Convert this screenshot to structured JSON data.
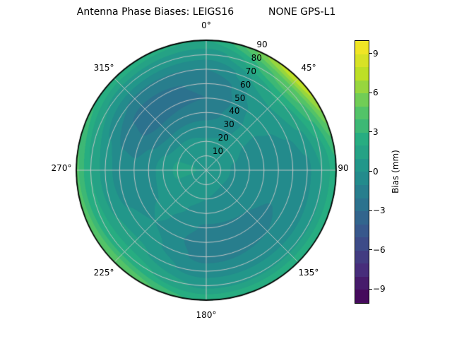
{
  "chart_data": {
    "type": "heatmap",
    "subtype": "filled-polar-contour",
    "title": "Antenna Phase Biases: LEIGS16           NONE GPS-L1",
    "colormap": "viridis",
    "levels": {
      "min": -10,
      "max": 10,
      "step": 1
    },
    "radial_range": [
      0,
      90
    ],
    "radial_label_angle_deg": 22.5,
    "grid_on": true,
    "angular_ticks": [
      {
        "angle_deg": 0,
        "label": "0°"
      },
      {
        "angle_deg": 45,
        "label": "45°"
      },
      {
        "angle_deg": 90,
        "label": "90"
      },
      {
        "angle_deg": 135,
        "label": "135°"
      },
      {
        "angle_deg": 180,
        "label": "180°"
      },
      {
        "angle_deg": 225,
        "label": "225°"
      },
      {
        "angle_deg": 270,
        "label": "270°"
      },
      {
        "angle_deg": 315,
        "label": "315°"
      }
    ],
    "radial_ticks": [
      {
        "value": 10,
        "label": "10"
      },
      {
        "value": 20,
        "label": "20"
      },
      {
        "value": 30,
        "label": "30"
      },
      {
        "value": 40,
        "label": "40"
      },
      {
        "value": 50,
        "label": "50"
      },
      {
        "value": 60,
        "label": "60"
      },
      {
        "value": 70,
        "label": "70"
      },
      {
        "value": 80,
        "label": "80"
      },
      {
        "value": 90,
        "label": "90"
      }
    ],
    "colorbar": {
      "label": "Bias (mm)",
      "range": [
        -10,
        10
      ],
      "n_bands": 20,
      "ticks": [
        {
          "value": 9,
          "label": "9"
        },
        {
          "value": 6,
          "label": "6"
        },
        {
          "value": 3,
          "label": "3"
        },
        {
          "value": 0,
          "label": "0"
        },
        {
          "value": -3,
          "label": "−3"
        },
        {
          "value": -6,
          "label": "−6"
        },
        {
          "value": -9,
          "label": "−9"
        }
      ]
    },
    "grid": {
      "azimuth_deg": [
        0,
        45,
        90,
        135,
        180,
        225,
        270,
        315,
        360
      ],
      "zenith_deg": [
        0,
        10,
        20,
        30,
        40,
        50,
        60,
        70,
        80,
        90
      ],
      "bias_mm": [
        [
          0.6,
          0.6,
          0.6,
          0.6,
          0.6,
          0.6,
          0.6,
          0.6,
          0.6
        ],
        [
          0.4,
          0.5,
          0.3,
          0.2,
          0.3,
          0.7,
          1.1,
          0.8,
          0.4
        ],
        [
          0.1,
          0.3,
          -0.1,
          -0.2,
          0.0,
          0.6,
          1.2,
          0.6,
          0.1
        ],
        [
          -0.7,
          0.1,
          -0.4,
          -0.6,
          -0.5,
          0.3,
          0.4,
          -0.6,
          -0.7
        ],
        [
          -1.4,
          0.1,
          -0.7,
          -1.0,
          -1.1,
          0.1,
          -0.4,
          -1.7,
          -1.4
        ],
        [
          -2.0,
          0.3,
          -0.8,
          -1.1,
          -1.5,
          0.0,
          -0.8,
          -2.5,
          -2.0
        ],
        [
          -1.9,
          0.9,
          -0.7,
          -1.0,
          -1.3,
          0.4,
          -0.6,
          -2.3,
          -1.9
        ],
        [
          -1.0,
          2.1,
          -0.2,
          -0.4,
          -0.6,
          1.2,
          0.6,
          -1.1,
          -1.0
        ],
        [
          0.4,
          4.4,
          1.0,
          0.9,
          0.8,
          2.6,
          2.0,
          0.7,
          0.4
        ],
        [
          2.0,
          7.8,
          2.7,
          3.0,
          2.7,
          5.0,
          4.2,
          2.6,
          2.0
        ]
      ]
    },
    "colors": {
      "grid_line": "#c8c8c8",
      "outline": "#000000",
      "background": "#ffffff",
      "viridis_min": "#440154",
      "viridis_mid": "#21918c",
      "viridis_max": "#fde725"
    }
  }
}
